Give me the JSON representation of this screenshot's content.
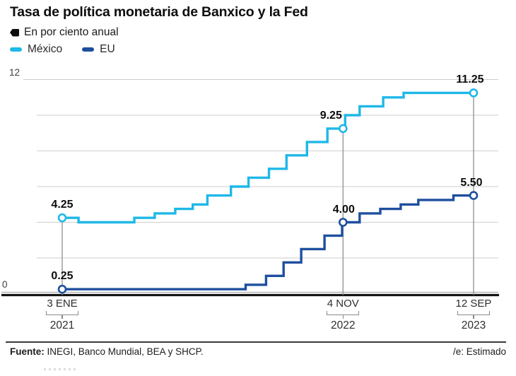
{
  "title": "Tasa de política monetaria de Banxico y la Fed",
  "subtitle": "En por ciento anual",
  "legend": [
    {
      "label": "México",
      "color": "#1FB8E8"
    },
    {
      "label": "EU",
      "color": "#1E4F9E"
    }
  ],
  "footer": {
    "source_bold": "Fuente:",
    "source_rest": "INEGI, Banco Mundial, BEA y SHCP.",
    "note": "/e: Estimado"
  },
  "chart_data": {
    "type": "line",
    "subtype": "step",
    "title": "Tasa de política monetaria de Banxico y la Fed",
    "units": "por ciento anual",
    "ylim": [
      0,
      12
    ],
    "grid_interval": 2,
    "grid": "horizontal",
    "legend_position": "top-left",
    "y_ticks_labeled": [
      {
        "value": 12,
        "label": "12"
      },
      {
        "value": 0,
        "label": "0"
      }
    ],
    "x_ticks": [
      {
        "day": "3 ENE",
        "year": "2021",
        "t": 2021.005
      },
      {
        "day": "4 NOV",
        "year": "2022",
        "t": 2022.844
      },
      {
        "day": "12 SEP",
        "year": "2023",
        "t": 2023.699
      }
    ],
    "series": [
      {
        "name": "México",
        "color": "#1FB8E8",
        "points": [
          [
            2021.005,
            4.25
          ],
          [
            2021.112,
            4.0
          ],
          [
            2021.477,
            4.25
          ],
          [
            2021.611,
            4.5
          ],
          [
            2021.745,
            4.75
          ],
          [
            2021.86,
            5.0
          ],
          [
            2021.956,
            5.5
          ],
          [
            2022.11,
            6.0
          ],
          [
            2022.225,
            6.5
          ],
          [
            2022.359,
            7.0
          ],
          [
            2022.474,
            7.75
          ],
          [
            2022.608,
            8.5
          ],
          [
            2022.742,
            9.25
          ],
          [
            2022.858,
            10.0
          ],
          [
            2022.953,
            10.5
          ],
          [
            2023.107,
            11.0
          ],
          [
            2023.241,
            11.25
          ],
          [
            2023.699,
            11.25
          ]
        ]
      },
      {
        "name": "EU",
        "color": "#1E4F9E",
        "points": [
          [
            2021.005,
            0.25
          ],
          [
            2022.206,
            0.5
          ],
          [
            2022.34,
            1.0
          ],
          [
            2022.455,
            1.75
          ],
          [
            2022.57,
            2.5
          ],
          [
            2022.723,
            3.25
          ],
          [
            2022.838,
            4.0
          ],
          [
            2022.953,
            4.5
          ],
          [
            2023.088,
            4.75
          ],
          [
            2023.222,
            5.0
          ],
          [
            2023.337,
            5.25
          ],
          [
            2023.567,
            5.5
          ],
          [
            2023.699,
            5.5
          ]
        ]
      }
    ],
    "markers": [
      {
        "series": "México",
        "t": 2021.005,
        "value": 4.25,
        "label": "4.25"
      },
      {
        "series": "México",
        "t": 2022.844,
        "value": 9.25,
        "label": "9.25"
      },
      {
        "series": "México",
        "t": 2023.699,
        "value": 11.25,
        "label": "11.25"
      },
      {
        "series": "EU",
        "t": 2021.005,
        "value": 0.25,
        "label": "0.25"
      },
      {
        "series": "EU",
        "t": 2022.844,
        "value": 4.0,
        "label": "4.00"
      },
      {
        "series": "EU",
        "t": 2023.699,
        "value": 5.5,
        "label": "5.50"
      }
    ]
  }
}
